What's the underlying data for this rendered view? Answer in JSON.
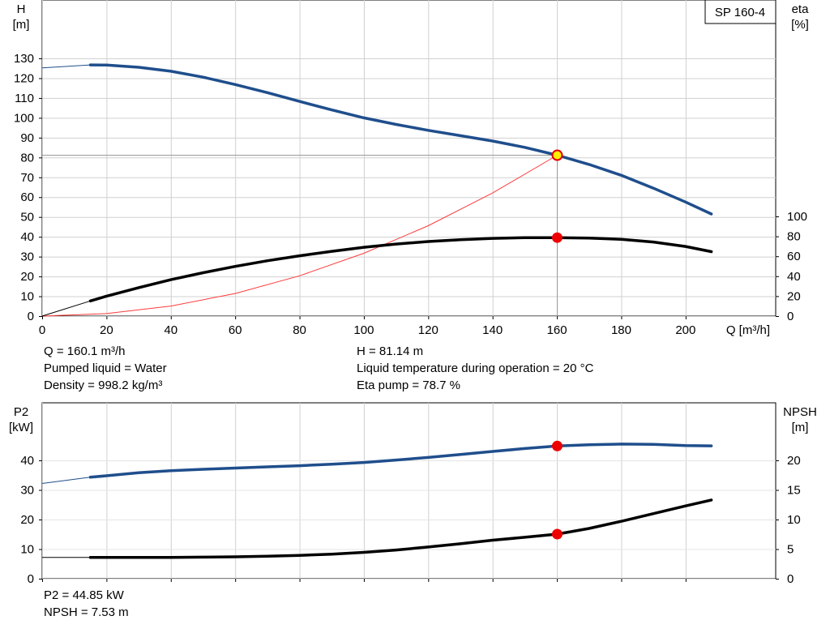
{
  "chart_data": [
    {
      "type": "line",
      "title": "SP 160-4",
      "xlabel": "Q [m³/h]",
      "xlim": [
        0,
        228
      ],
      "x_ticks": [
        0,
        20,
        40,
        60,
        80,
        100,
        120,
        140,
        160,
        180,
        200
      ],
      "y_left": {
        "label_line1": "H",
        "label_line2": "[m]",
        "ylim": [
          0,
          142
        ],
        "ticks": [
          0,
          10,
          20,
          30,
          40,
          50,
          60,
          70,
          80,
          90,
          100,
          110,
          120,
          130
        ]
      },
      "y_right": {
        "label_line1": "eta",
        "label_line2": "[%]",
        "ylim": [
          0,
          122
        ],
        "ticks": [
          0,
          20,
          40,
          60,
          80,
          100
        ]
      },
      "grid": true,
      "series": [
        {
          "axis": "left",
          "color": "#1f4e8c",
          "ext_x": [
            0,
            15
          ],
          "ext_y": [
            125.2,
            126.7
          ],
          "x": [
            15,
            20,
            30,
            40,
            50,
            60,
            70,
            80,
            90,
            100,
            110,
            120,
            130,
            140,
            150,
            160.1,
            170,
            180,
            190,
            200,
            208
          ],
          "y": [
            126.7,
            126.6,
            125.5,
            123.5,
            120.5,
            116.8,
            112.7,
            108.3,
            104.0,
            100.0,
            96.7,
            93.7,
            91.0,
            88.3,
            85.1,
            81.14,
            76.5,
            71.0,
            64.5,
            57.5,
            51.5
          ]
        },
        {
          "axis": "right",
          "color": "#000000",
          "ext_x": [
            0,
            15
          ],
          "ext_y": [
            0,
            15.2
          ],
          "x": [
            15,
            20,
            30,
            40,
            50,
            60,
            70,
            80,
            90,
            100,
            110,
            120,
            130,
            140,
            150,
            160.1,
            170,
            180,
            190,
            200,
            208
          ],
          "y": [
            15.2,
            20.0,
            28.5,
            36.5,
            43.5,
            49.8,
            55.5,
            60.5,
            65.0,
            69.0,
            72.3,
            74.8,
            76.7,
            78.0,
            78.6,
            78.7,
            78.3,
            77.0,
            74.3,
            69.8,
            64.6
          ]
        }
      ],
      "system_curve": {
        "color": "#ff3b3b",
        "x": [
          0,
          20,
          40,
          60,
          80,
          100,
          120,
          140,
          160.1
        ],
        "y": [
          0,
          1.27,
          5.07,
          11.4,
          20.3,
          31.7,
          45.6,
          62.1,
          81.14
        ]
      },
      "operating_point": {
        "q": 160.1,
        "h": 81.14,
        "eta": 78.7
      }
    },
    {
      "type": "line",
      "xlim": [
        0,
        228
      ],
      "x_ticks": [
        0,
        20,
        40,
        60,
        80,
        100,
        120,
        140,
        160,
        180,
        200
      ],
      "y_left": {
        "label_line1": "P2",
        "label_line2": "[kW]",
        "ylim": [
          0,
          51
        ],
        "ticks": [
          0,
          10,
          20,
          30,
          40
        ]
      },
      "y_right": {
        "label_line1": "NPSH",
        "label_line2": "[m]",
        "ylim": [
          0,
          25.5
        ],
        "ticks": [
          0,
          5,
          10,
          15,
          20
        ]
      },
      "grid": true,
      "series": [
        {
          "axis": "left",
          "color": "#1f4e8c",
          "ext_x": [
            0,
            15
          ],
          "ext_y": [
            32.2,
            34.3
          ],
          "x": [
            15,
            20,
            30,
            40,
            50,
            60,
            70,
            80,
            90,
            100,
            110,
            120,
            130,
            140,
            150,
            160.1,
            170,
            180,
            190,
            200,
            208
          ],
          "y": [
            34.3,
            34.8,
            35.8,
            36.5,
            37.0,
            37.4,
            37.8,
            38.2,
            38.7,
            39.3,
            40.1,
            41.0,
            42.0,
            43.0,
            44.0,
            44.85,
            45.3,
            45.5,
            45.4,
            45.0,
            44.9
          ]
        },
        {
          "axis": "right",
          "color": "#000000",
          "ext_x": [
            0,
            15
          ],
          "ext_y": [
            3.6,
            3.6
          ],
          "x": [
            15,
            20,
            30,
            40,
            50,
            60,
            70,
            80,
            90,
            100,
            110,
            120,
            130,
            140,
            150,
            160.1,
            170,
            180,
            190,
            200,
            208
          ],
          "y": [
            3.6,
            3.6,
            3.6,
            3.6,
            3.65,
            3.7,
            3.8,
            3.95,
            4.15,
            4.45,
            4.85,
            5.35,
            5.9,
            6.5,
            7.0,
            7.53,
            8.5,
            9.7,
            11.0,
            12.3,
            13.3
          ]
        }
      ],
      "operating_point": {
        "q": 160.1,
        "p2": 44.85,
        "npsh": 7.53
      }
    }
  ],
  "info_top_left": [
    "Q = 160.1 m³/h",
    "Pumped liquid = Water",
    "Density = 998.2 kg/m³"
  ],
  "info_top_right": [
    "H = 81.14 m",
    "Liquid temperature during operation = 20 °C",
    "Eta pump = 78.7 %"
  ],
  "info_bottom": [
    "P2 = 44.85 kW",
    "NPSH = 7.53 m"
  ]
}
